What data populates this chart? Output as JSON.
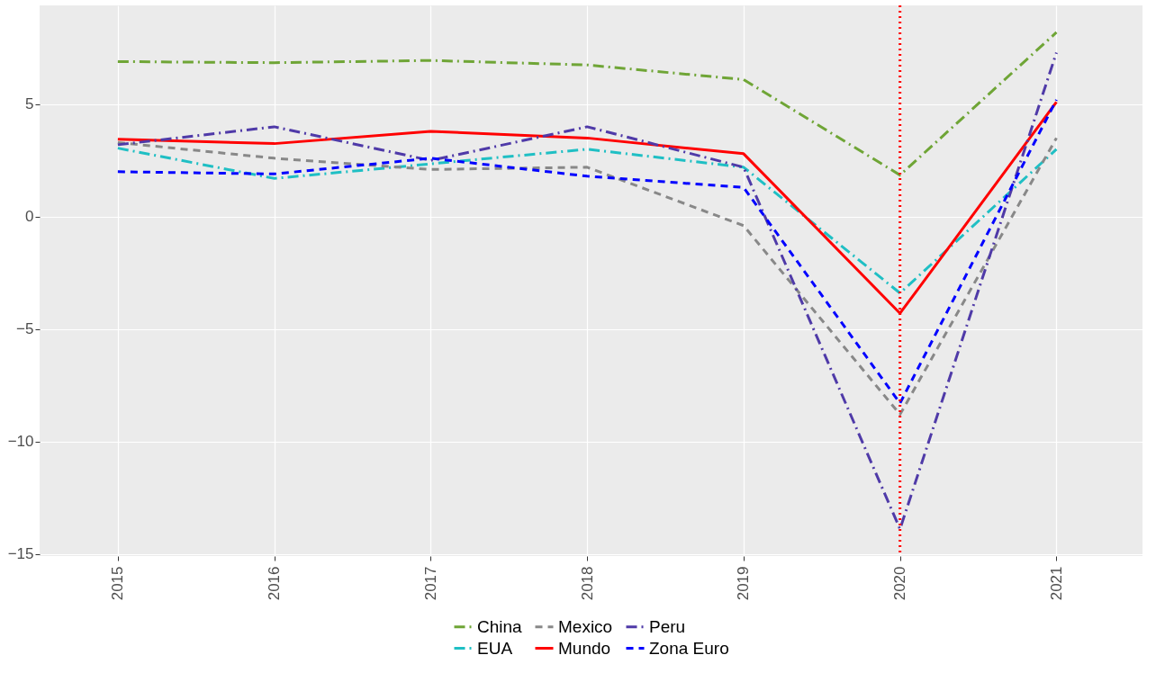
{
  "chart_data": {
    "type": "line",
    "x": [
      2015,
      2016,
      2017,
      2018,
      2019,
      2020,
      2021
    ],
    "xlim": [
      2014.5,
      2021.55
    ],
    "xticks": [
      2015,
      2016,
      2017,
      2018,
      2019,
      2020,
      2021
    ],
    "ylim": [
      -15.1,
      9.4
    ],
    "yticks": [
      -15,
      -10,
      -5,
      0,
      5
    ],
    "series": [
      {
        "name": "China",
        "color": "#6fa536",
        "line_style": "dashdot",
        "values": [
          6.9,
          6.85,
          6.95,
          6.75,
          6.1,
          1.85,
          8.2
        ]
      },
      {
        "name": "EUA",
        "color": "#1fbfc4",
        "line_style": "dashdot",
        "values": [
          3.05,
          1.7,
          2.35,
          3.0,
          2.2,
          -3.4,
          3.0
        ]
      },
      {
        "name": "Mexico",
        "color": "#888888",
        "line_style": "dashed",
        "values": [
          3.3,
          2.6,
          2.1,
          2.2,
          -0.4,
          -8.8,
          3.5
        ]
      },
      {
        "name": "Mundo",
        "color": "#ff0000",
        "line_style": "solid",
        "values": [
          3.45,
          3.25,
          3.8,
          3.5,
          2.8,
          -4.3,
          5.1
        ]
      },
      {
        "name": "Peru",
        "color": "#4f3aa8",
        "line_style": "dashdot",
        "values": [
          3.2,
          4.0,
          2.5,
          4.0,
          2.2,
          -13.9,
          7.3
        ]
      },
      {
        "name": "Zona Euro",
        "color": "#0000ff",
        "line_style": "dashed",
        "values": [
          2.0,
          1.9,
          2.6,
          1.8,
          1.3,
          -8.3,
          5.2
        ]
      }
    ],
    "ref_lines": [
      {
        "axis": "x",
        "value": 2020,
        "color": "#ff0000",
        "line_style": "dotted"
      }
    ],
    "grid": true,
    "legend": "bottom"
  }
}
